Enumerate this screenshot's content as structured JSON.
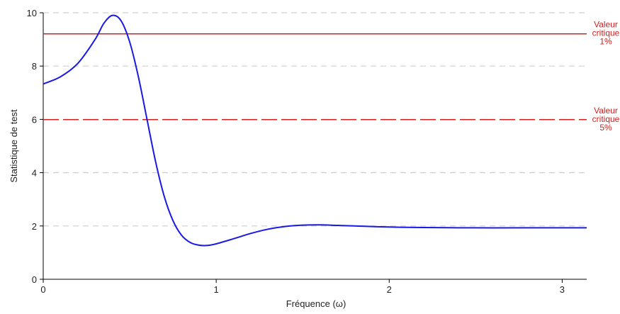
{
  "chart_data": {
    "type": "line",
    "x_label": "Fréquence (ω)",
    "y_label": "Statistique de test",
    "x": [
      0,
      0.1,
      0.2,
      0.3,
      0.35,
      0.4,
      0.45,
      0.5,
      0.55,
      0.6,
      0.65,
      0.7,
      0.75,
      0.8,
      0.85,
      0.9,
      0.95,
      1.0,
      1.1,
      1.2,
      1.3,
      1.4,
      1.5,
      1.6,
      1.7,
      1.8,
      2.0,
      2.2,
      2.5,
      2.8,
      3.1416
    ],
    "series": [
      {
        "color": "#1a1ae6",
        "values": [
          7.33,
          7.6,
          8.1,
          9.0,
          9.6,
          9.9,
          9.7,
          8.9,
          7.6,
          6.0,
          4.4,
          3.1,
          2.2,
          1.65,
          1.38,
          1.28,
          1.27,
          1.33,
          1.52,
          1.72,
          1.88,
          1.98,
          2.03,
          2.04,
          2.02,
          2.0,
          1.96,
          1.94,
          1.93,
          1.93,
          1.93
        ]
      }
    ],
    "hlines": [
      {
        "value": 9.21,
        "label": [
          "Valeur",
          "critique",
          "1%"
        ],
        "color": "#cc2222",
        "dashed": false
      },
      {
        "value": 5.99,
        "label": [
          "Valeur",
          "critique",
          "5%"
        ],
        "color": "#cc2222",
        "dashed": true
      }
    ],
    "xlim": [
      0,
      3.1416
    ],
    "ylim": [
      0,
      10
    ],
    "xticks": [
      0,
      1,
      2,
      3
    ],
    "yticks": [
      0,
      2,
      4,
      6,
      8,
      10
    ],
    "grid": true
  }
}
